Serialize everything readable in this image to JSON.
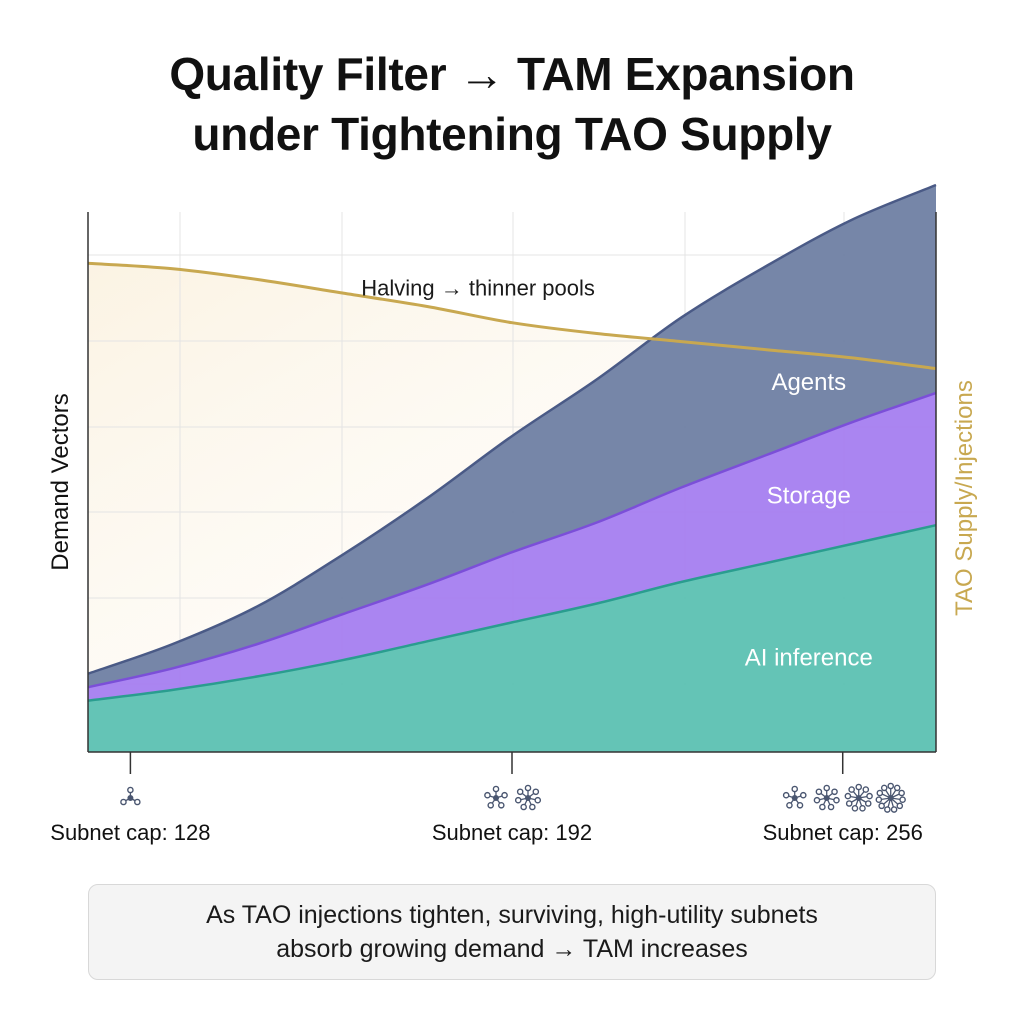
{
  "title": {
    "line1": "Quality Filter → TAM Expansion",
    "line2": "under Tightening TAO Supply"
  },
  "colors": {
    "supply": "#c8a850",
    "supply_fill": "#fbf3e3",
    "agents": "#6f7fa3",
    "agents_line": "#4a5a86",
    "storage": "#a57ef0",
    "storage_line": "#7b4fd8",
    "inference": "#5cc1b2",
    "inference_line": "#2a9d8f",
    "grid": "#e4e4e4",
    "axis": "#333333",
    "icon": "#4a5670"
  },
  "chart_data": {
    "type": "area",
    "title": "Quality Filter → TAM Expansion under Tightening TAO Supply",
    "ylabel": "Demand Vectors",
    "y2label": "TAO Supply/Injections",
    "x": [
      0,
      1,
      2,
      3,
      4,
      5,
      6,
      7,
      8,
      9,
      10
    ],
    "xlim": [
      0,
      10
    ],
    "ylim": [
      0,
      100
    ],
    "stacked": true,
    "series": [
      {
        "name": "AI inference",
        "values": [
          9.5,
          11.5,
          14,
          17,
          20.5,
          24,
          27.5,
          31.5,
          35,
          38.5,
          42
        ]
      },
      {
        "name": "Storage",
        "values": [
          2.5,
          4,
          6,
          8.5,
          10.5,
          13,
          15,
          17.5,
          20,
          22.5,
          24.5
        ]
      },
      {
        "name": "Agents",
        "values": [
          2.5,
          4.5,
          7,
          11,
          16,
          21.5,
          26.5,
          31.5,
          35,
          37.5,
          38.5
        ]
      }
    ],
    "supply_line": {
      "name": "TAO Supply/Injections",
      "values": [
        90.5,
        89.5,
        87.5,
        85,
        82.5,
        79.5,
        77.5,
        76,
        74.5,
        73,
        71
      ]
    },
    "annotations": [
      {
        "text": "Halving → thinner pools",
        "x": 4.6,
        "y": 84.5
      }
    ],
    "series_labels": [
      {
        "text": "Agents",
        "x": 8.5,
        "y": 67
      },
      {
        "text": "Storage",
        "x": 8.5,
        "y": 46
      },
      {
        "text": "AI inference",
        "x": 8.5,
        "y": 16
      }
    ],
    "milestones": [
      {
        "x": 0.5,
        "label": "Subnet cap: 128",
        "icons": 1
      },
      {
        "x": 5.0,
        "label": "Subnet cap: 192",
        "icons": 2
      },
      {
        "x": 8.9,
        "label": "Subnet cap: 256",
        "icons": 4
      }
    ],
    "grid": true
  },
  "caption": {
    "line1": "As TAO injections tighten, surviving, high-utility subnets",
    "line2": "absorb growing demand → TAM increases"
  }
}
